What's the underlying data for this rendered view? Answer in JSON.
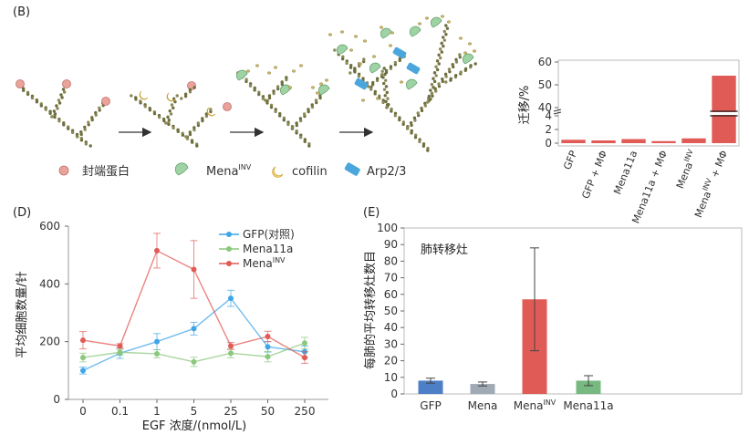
{
  "panel_labels": {
    "b": "(B)",
    "d": "(D)",
    "e": "(E)"
  },
  "diagram": {
    "legend": [
      {
        "label": "封端蛋白",
        "icon": "capping-protein-icon",
        "color": "#e9a39b"
      },
      {
        "label": "Mena",
        "sup": "INV",
        "icon": "mena-inv-icon",
        "color": "#9fd3a5"
      },
      {
        "label": "cofilin",
        "icon": "cofilin-icon",
        "color": "#f6d46a"
      },
      {
        "label": "Arp2/3",
        "icon": "arp23-icon",
        "color": "#4aa6dc"
      }
    ]
  },
  "colors": {
    "red": "#e15b56",
    "blue": "#3da6e8",
    "green": "#8cc77f",
    "bar_blue": "#4d7fc6",
    "bar_gray": "#a0aab5",
    "bar_green": "#77b980"
  },
  "chart_data": [
    {
      "id": "migration",
      "type": "bar",
      "ylabel": "迁移/%",
      "yticks": [
        "0",
        "2",
        "4",
        "40",
        "50",
        "60"
      ],
      "categories": [
        "GFP",
        "GFP + MΦ",
        "Mena11a",
        "Mena11a + MΦ",
        "Mena^INV",
        "Mena^INV + MΦ"
      ],
      "values": [
        0.5,
        0.4,
        0.6,
        0.3,
        0.7,
        54
      ],
      "axis_break": true
    },
    {
      "id": "cell-count",
      "type": "line",
      "xlabel": "EGF 浓度/(nmol/L)",
      "ylabel": "平均细胞数量/针",
      "categories": [
        "0",
        "0.1",
        "1",
        "5",
        "25",
        "50",
        "250"
      ],
      "ylim": [
        0,
        600
      ],
      "yticks": [
        "0",
        "200",
        "400",
        "600"
      ],
      "legend_position": "top-right",
      "series": [
        {
          "name": "GFP(对照)",
          "color": "#3da6e8",
          "values": [
            100,
            160,
            200,
            245,
            350,
            182,
            165
          ],
          "errors": [
            12,
            18,
            28,
            22,
            28,
            18,
            20
          ]
        },
        {
          "name": "Mena11a",
          "color": "#8cc77f",
          "values": [
            145,
            163,
            158,
            130,
            160,
            148,
            195
          ],
          "errors": [
            15,
            10,
            14,
            16,
            16,
            18,
            20
          ]
        },
        {
          "name": "Mena^INV",
          "color": "#e15b56",
          "values": [
            205,
            185,
            515,
            450,
            185,
            218,
            145
          ],
          "errors": [
            30,
            8,
            60,
            100,
            12,
            18,
            20
          ]
        }
      ]
    },
    {
      "id": "metastasis",
      "type": "bar",
      "title": "肺转移灶",
      "ylabel": "每肺的平均转移灶数目",
      "ylim": [
        0,
        100
      ],
      "yticks": [
        "0",
        "10",
        "20",
        "30",
        "40",
        "50",
        "60",
        "70",
        "80",
        "90",
        "100"
      ],
      "categories": [
        "GFP",
        "Mena",
        "Mena^INV",
        "Mena11a"
      ],
      "values": [
        8,
        6,
        57,
        8
      ],
      "errors": [
        1.5,
        1.2,
        31,
        3
      ],
      "colors": [
        "#4d7fc6",
        "#a0aab5",
        "#e15b56",
        "#77b980"
      ]
    }
  ]
}
